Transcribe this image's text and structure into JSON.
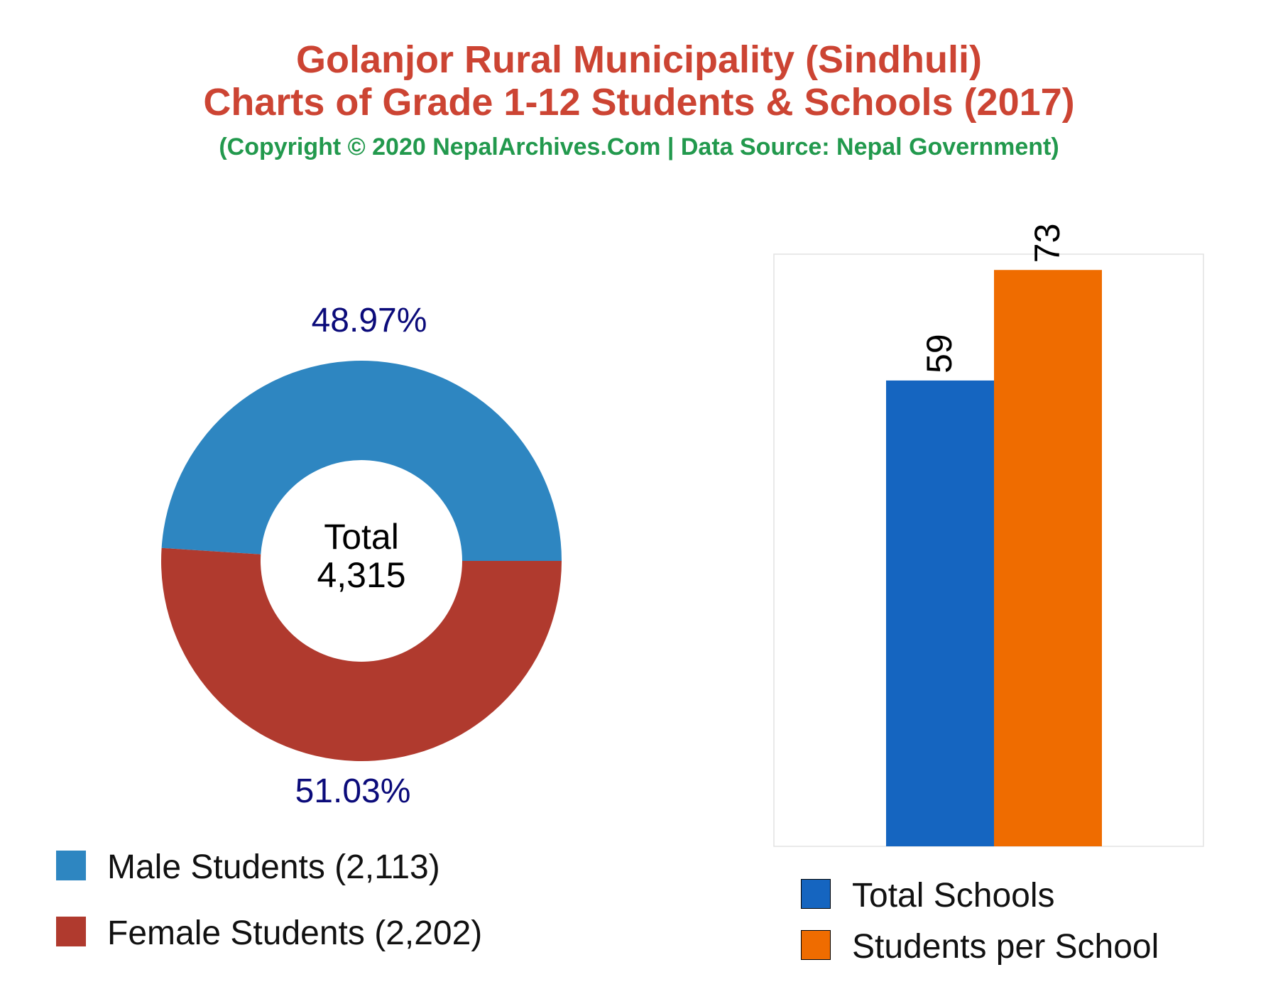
{
  "header": {
    "title_line1": "Golanjor Rural Municipality (Sindhuli)",
    "title_line2": "Charts of Grade 1-12 Students & Schools (2017)",
    "subtitle": "(Copyright © 2020 NepalArchives.Com | Data Source: Nepal Government)"
  },
  "chart_data": [
    {
      "type": "pie",
      "donut": true,
      "center_label": {
        "line1": "Total",
        "line2": "4,315"
      },
      "slices": [
        {
          "label": "Male Students (2,113)",
          "value": 2113,
          "percent_label": "48.97%",
          "color": "#2e86c1"
        },
        {
          "label": "Female Students (2,202)",
          "value": 2202,
          "percent_label": "51.03%",
          "color": "#b03a2e"
        }
      ],
      "label_color": "#0b0b7a",
      "legend_position": "bottom-left"
    },
    {
      "type": "bar",
      "categories": [
        "Total Schools",
        "Students per School"
      ],
      "values": [
        59,
        73
      ],
      "value_labels": [
        "59",
        "73"
      ],
      "colors": [
        "#1565c0",
        "#ef6c00"
      ],
      "ylim": [
        0,
        75
      ],
      "grid": false,
      "legend_position": "bottom"
    }
  ]
}
